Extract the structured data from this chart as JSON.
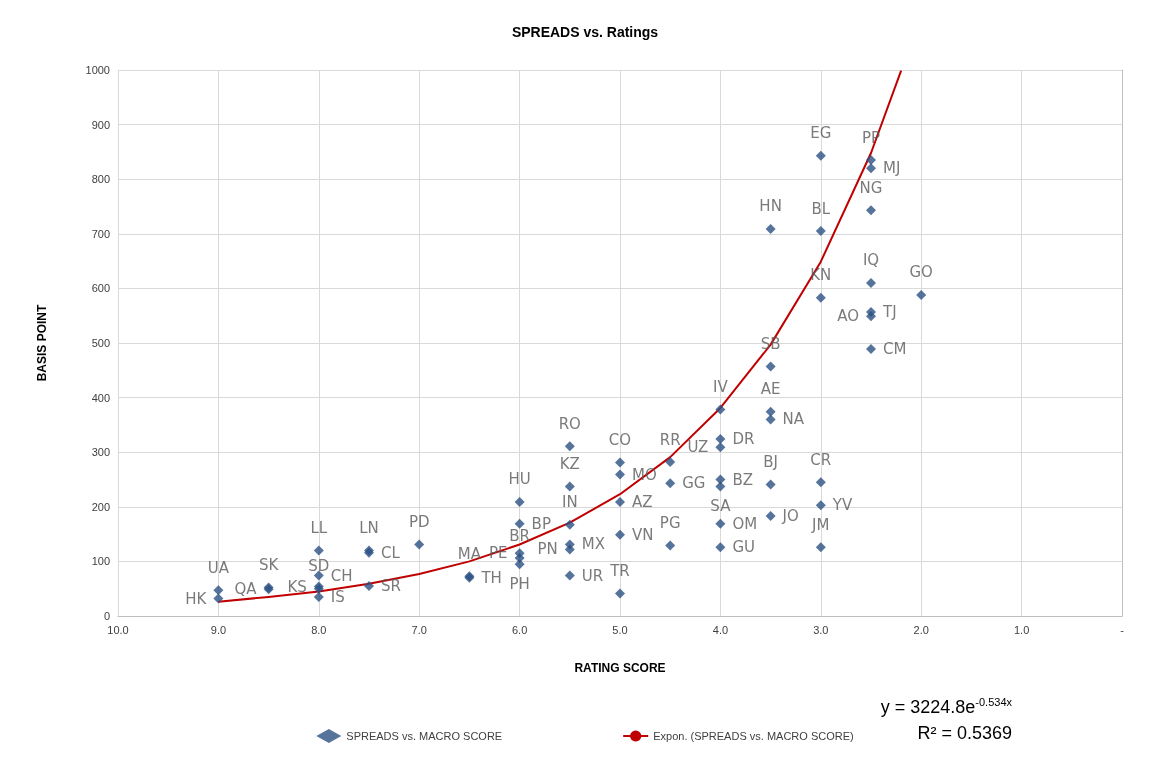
{
  "chart_data": {
    "type": "scatter",
    "title": "SPREADS vs. Ratings",
    "xlabel": "RATING SCORE",
    "ylabel": "BASIS POINT",
    "xlim": [
      10,
      0
    ],
    "xticks": [
      {
        "value": 10,
        "label": "10.0"
      },
      {
        "value": 9,
        "label": "9.0"
      },
      {
        "value": 8,
        "label": "8.0"
      },
      {
        "value": 7,
        "label": "7.0"
      },
      {
        "value": 6,
        "label": "6.0"
      },
      {
        "value": 5,
        "label": "5.0"
      },
      {
        "value": 4,
        "label": "4.0"
      },
      {
        "value": 3,
        "label": "3.0"
      },
      {
        "value": 2,
        "label": "2.0"
      },
      {
        "value": 1,
        "label": "1.0"
      },
      {
        "value": 0,
        "label": "-"
      }
    ],
    "ylim": [
      0,
      1000
    ],
    "yticks": [
      0,
      100,
      200,
      300,
      400,
      500,
      600,
      700,
      800,
      900,
      1000
    ],
    "grid": true,
    "legend": "bottom",
    "marker": "diamond",
    "series": [
      {
        "name": "SPREADS vs. MACRO SCORE",
        "color": "#2a5082",
        "x": [
          9,
          9,
          8.5,
          8.5,
          8,
          8,
          8,
          8,
          8,
          7.5,
          7.5,
          7.5,
          7,
          6.5,
          6.5,
          6,
          6,
          6,
          6,
          6,
          5.5,
          5.5,
          5.5,
          5.5,
          5.5,
          5.5,
          5,
          5,
          5,
          5,
          5,
          4.5,
          4.5,
          4.5,
          4,
          4,
          4,
          4,
          4,
          4,
          4,
          3.5,
          3.5,
          3.5,
          3.5,
          3.5,
          3.5,
          3,
          3,
          3,
          3,
          3,
          3,
          2.5,
          2.5,
          2.5,
          2.5,
          2.5,
          2.5,
          2.5,
          2
        ],
        "values": [
          47,
          32,
          52,
          49,
          120,
          74,
          54,
          50,
          35,
          120,
          116,
          55,
          131,
          73,
          70,
          209,
          169,
          115,
          106,
          95,
          311,
          237,
          167,
          131,
          122,
          74,
          281,
          259,
          209,
          149,
          41,
          282,
          243,
          129,
          378,
          324,
          309,
          250,
          237,
          169,
          126,
          709,
          457,
          374,
          360,
          241,
          183,
          843,
          705,
          583,
          245,
          203,
          126,
          835,
          820,
          743,
          610,
          557,
          549,
          489,
          588
        ],
        "value_labels": [
          "UA",
          "HK",
          "SK",
          "QA",
          "LL",
          "CH",
          "KS",
          "SD",
          "IS",
          "LN",
          "CL",
          "SR",
          "PD",
          "MA",
          "TH",
          "HU",
          "BP",
          "PE",
          "BR",
          "PH",
          "RO",
          "KZ",
          "IN",
          "MX",
          "PN",
          "UR",
          "CO",
          "MO",
          "AZ",
          "VN",
          "TR",
          "RR",
          "GG",
          "PG",
          "IV",
          "DR",
          "UZ",
          "BZ",
          "SA",
          "OM",
          "GU",
          "HN",
          "SB",
          "AE",
          "NA",
          "BJ",
          "JO",
          "EG",
          "BL",
          "KN",
          "CR",
          "YV",
          "JM",
          "PP",
          "MJ",
          "NG",
          "IQ",
          "TJ",
          "AO",
          "CM",
          "GO"
        ]
      },
      {
        "name": "Expon. (SPREADS vs. MACRO SCORE)",
        "type": "line",
        "color": "#c00000",
        "marker": "none",
        "x": [
          9,
          8.5,
          8,
          7.5,
          7,
          6.5,
          6,
          5.5,
          5,
          4.5,
          4,
          3.5,
          3,
          2.5,
          2.2
        ],
        "values": [
          26,
          35,
          45,
          59,
          77,
          100,
          131,
          171,
          223,
          291,
          381,
          497,
          649,
          848,
          999
        ]
      }
    ],
    "annotations": [
      "y = 3224.8e$^{-0.534x}$",
      "R² = 0.5369"
    ]
  }
}
